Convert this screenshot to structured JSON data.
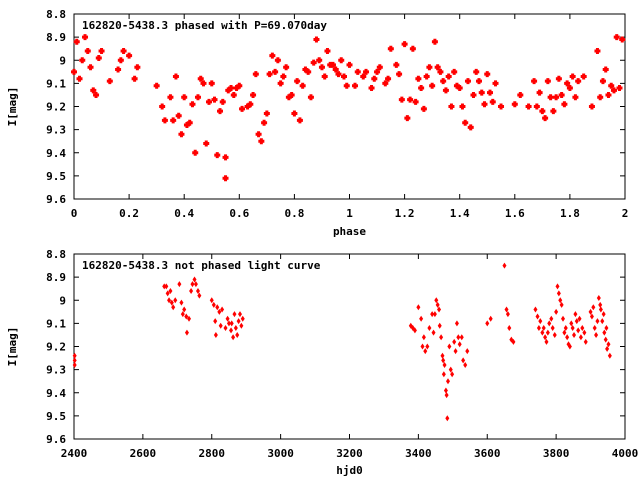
{
  "chart_data": [
    {
      "type": "scatter",
      "title": "162820-5438.3 phased with P=69.070day",
      "xlabel": "phase",
      "ylabel": "I[mag]",
      "xlim": [
        0,
        2
      ],
      "ylim": [
        8.8,
        9.6
      ],
      "y_inverted": true,
      "x_ticks": [
        "0",
        "0.2",
        "0.4",
        "0.6",
        "0.8",
        "1",
        "1.2",
        "1.4",
        "1.6",
        "1.8",
        "2"
      ],
      "y_ticks": [
        "8.8",
        "8.9",
        "9",
        "9.1",
        "9.2",
        "9.3",
        "9.4",
        "9.5",
        "9.6"
      ],
      "marker_color": "#ff0000",
      "grid": false,
      "points": [
        [
          0.0,
          9.05
        ],
        [
          0.01,
          8.92
        ],
        [
          0.02,
          9.08
        ],
        [
          0.03,
          9.0
        ],
        [
          0.04,
          8.9
        ],
        [
          0.05,
          8.96
        ],
        [
          0.06,
          9.03
        ],
        [
          0.07,
          9.13
        ],
        [
          0.08,
          9.15
        ],
        [
          0.09,
          8.99
        ],
        [
          0.1,
          8.96
        ],
        [
          0.13,
          9.09
        ],
        [
          0.16,
          9.04
        ],
        [
          0.17,
          9.0
        ],
        [
          0.18,
          8.96
        ],
        [
          0.2,
          8.98
        ],
        [
          0.22,
          9.08
        ],
        [
          0.23,
          9.03
        ],
        [
          0.3,
          9.11
        ],
        [
          0.32,
          9.2
        ],
        [
          0.33,
          9.26
        ],
        [
          0.35,
          9.16
        ],
        [
          0.36,
          9.26
        ],
        [
          0.37,
          9.07
        ],
        [
          0.38,
          9.24
        ],
        [
          0.39,
          9.32
        ],
        [
          0.4,
          9.16
        ],
        [
          0.41,
          9.28
        ],
        [
          0.42,
          9.27
        ],
        [
          0.43,
          9.19
        ],
        [
          0.44,
          9.4
        ],
        [
          0.45,
          9.16
        ],
        [
          0.46,
          9.08
        ],
        [
          0.47,
          9.1
        ],
        [
          0.48,
          9.36
        ],
        [
          0.49,
          9.18
        ],
        [
          0.5,
          9.1
        ],
        [
          0.51,
          9.17
        ],
        [
          0.52,
          9.41
        ],
        [
          0.53,
          9.22
        ],
        [
          0.54,
          9.18
        ],
        [
          0.55,
          9.51
        ],
        [
          0.55,
          9.42
        ],
        [
          0.56,
          9.13
        ],
        [
          0.57,
          9.12
        ],
        [
          0.58,
          9.15
        ],
        [
          0.59,
          9.12
        ],
        [
          0.6,
          9.11
        ],
        [
          0.61,
          9.21
        ],
        [
          0.63,
          9.2
        ],
        [
          0.64,
          9.19
        ],
        [
          0.65,
          9.15
        ],
        [
          0.66,
          9.06
        ],
        [
          0.67,
          9.32
        ],
        [
          0.68,
          9.35
        ],
        [
          0.69,
          9.27
        ],
        [
          0.7,
          9.23
        ],
        [
          0.71,
          9.06
        ],
        [
          0.72,
          8.98
        ],
        [
          0.73,
          9.05
        ],
        [
          0.74,
          9.0
        ],
        [
          0.75,
          9.1
        ],
        [
          0.76,
          9.07
        ],
        [
          0.77,
          9.03
        ],
        [
          0.78,
          9.16
        ],
        [
          0.79,
          9.15
        ],
        [
          0.8,
          9.23
        ],
        [
          0.81,
          9.09
        ],
        [
          0.82,
          9.26
        ],
        [
          0.83,
          9.11
        ],
        [
          0.84,
          9.04
        ],
        [
          0.85,
          9.05
        ],
        [
          0.86,
          9.16
        ],
        [
          0.87,
          9.01
        ],
        [
          0.88,
          8.91
        ],
        [
          0.89,
          9.0
        ],
        [
          0.9,
          9.03
        ],
        [
          0.91,
          9.07
        ],
        [
          0.92,
          8.96
        ],
        [
          0.93,
          9.02
        ],
        [
          0.94,
          9.02
        ],
        [
          0.95,
          9.04
        ],
        [
          0.96,
          9.06
        ],
        [
          0.97,
          9.0
        ],
        [
          0.98,
          9.07
        ],
        [
          0.99,
          9.11
        ],
        [
          1.0,
          9.02
        ],
        [
          1.02,
          9.11
        ],
        [
          1.03,
          9.05
        ],
        [
          1.05,
          9.07
        ],
        [
          1.06,
          9.05
        ],
        [
          1.08,
          9.12
        ],
        [
          1.09,
          9.08
        ],
        [
          1.1,
          9.05
        ],
        [
          1.11,
          9.03
        ],
        [
          1.13,
          9.1
        ],
        [
          1.14,
          9.08
        ],
        [
          1.15,
          8.95
        ],
        [
          1.17,
          9.02
        ],
        [
          1.18,
          9.06
        ],
        [
          1.19,
          9.17
        ],
        [
          1.2,
          8.93
        ],
        [
          1.21,
          9.25
        ],
        [
          1.22,
          9.17
        ],
        [
          1.23,
          8.95
        ],
        [
          1.24,
          9.18
        ],
        [
          1.25,
          9.08
        ],
        [
          1.26,
          9.12
        ],
        [
          1.27,
          9.21
        ],
        [
          1.28,
          9.07
        ],
        [
          1.29,
          9.03
        ],
        [
          1.3,
          9.11
        ],
        [
          1.31,
          8.92
        ],
        [
          1.32,
          9.03
        ],
        [
          1.33,
          9.05
        ],
        [
          1.34,
          9.09
        ],
        [
          1.35,
          9.13
        ],
        [
          1.36,
          9.07
        ],
        [
          1.37,
          9.2
        ],
        [
          1.38,
          9.05
        ],
        [
          1.39,
          9.11
        ],
        [
          1.4,
          9.12
        ],
        [
          1.41,
          9.2
        ],
        [
          1.42,
          9.27
        ],
        [
          1.43,
          9.09
        ],
        [
          1.44,
          9.29
        ],
        [
          1.45,
          9.15
        ],
        [
          1.46,
          9.05
        ],
        [
          1.47,
          9.09
        ],
        [
          1.48,
          9.14
        ],
        [
          1.49,
          9.19
        ],
        [
          1.5,
          9.06
        ],
        [
          1.51,
          9.14
        ],
        [
          1.52,
          9.18
        ],
        [
          1.53,
          9.1
        ],
        [
          1.55,
          9.2
        ],
        [
          1.6,
          9.19
        ],
        [
          1.62,
          9.15
        ],
        [
          1.65,
          9.2
        ],
        [
          1.67,
          9.09
        ],
        [
          1.68,
          9.2
        ],
        [
          1.69,
          9.14
        ],
        [
          1.7,
          9.22
        ],
        [
          1.71,
          9.25
        ],
        [
          1.72,
          9.09
        ],
        [
          1.73,
          9.16
        ],
        [
          1.74,
          9.22
        ],
        [
          1.75,
          9.16
        ],
        [
          1.76,
          9.08
        ],
        [
          1.77,
          9.15
        ],
        [
          1.78,
          9.19
        ],
        [
          1.79,
          9.1
        ],
        [
          1.8,
          9.12
        ],
        [
          1.81,
          9.07
        ],
        [
          1.82,
          9.16
        ],
        [
          1.83,
          9.09
        ],
        [
          1.85,
          9.07
        ],
        [
          1.88,
          9.2
        ],
        [
          1.9,
          8.96
        ],
        [
          1.91,
          9.16
        ],
        [
          1.92,
          9.09
        ],
        [
          1.93,
          9.04
        ],
        [
          1.94,
          9.15
        ],
        [
          1.95,
          9.11
        ],
        [
          1.96,
          9.13
        ],
        [
          1.97,
          8.9
        ],
        [
          1.98,
          9.12
        ],
        [
          1.99,
          8.91
        ]
      ]
    },
    {
      "type": "scatter",
      "title": "162820-5438.3 not phased light curve",
      "xlabel": "hjd0",
      "ylabel": "I[mag]",
      "xlim": [
        2400,
        4000
      ],
      "ylim": [
        8.8,
        9.6
      ],
      "y_inverted": true,
      "x_ticks": [
        "2400",
        "2600",
        "2800",
        "3000",
        "3200",
        "3400",
        "3600",
        "3800",
        "4000"
      ],
      "y_ticks": [
        "8.8",
        "8.9",
        "9",
        "9.1",
        "9.2",
        "9.3",
        "9.4",
        "9.5",
        "9.6"
      ],
      "marker_color": "#ff0000",
      "grid": false,
      "points": [
        [
          2402,
          9.24
        ],
        [
          2402,
          9.26
        ],
        [
          2402,
          9.28
        ],
        [
          2662,
          8.94
        ],
        [
          2668,
          8.94
        ],
        [
          2672,
          8.97
        ],
        [
          2676,
          9.0
        ],
        [
          2680,
          8.96
        ],
        [
          2684,
          9.01
        ],
        [
          2688,
          9.03
        ],
        [
          2694,
          9.0
        ],
        [
          2706,
          8.93
        ],
        [
          2712,
          9.01
        ],
        [
          2716,
          9.06
        ],
        [
          2720,
          9.04
        ],
        [
          2726,
          9.07
        ],
        [
          2728,
          9.14
        ],
        [
          2734,
          9.08
        ],
        [
          2740,
          8.96
        ],
        [
          2744,
          8.93
        ],
        [
          2750,
          8.91
        ],
        [
          2754,
          8.93
        ],
        [
          2760,
          8.96
        ],
        [
          2764,
          8.98
        ],
        [
          2800,
          9.0
        ],
        [
          2806,
          9.02
        ],
        [
          2810,
          9.09
        ],
        [
          2812,
          9.15
        ],
        [
          2816,
          9.03
        ],
        [
          2822,
          9.05
        ],
        [
          2826,
          9.11
        ],
        [
          2830,
          9.04
        ],
        [
          2840,
          9.12
        ],
        [
          2846,
          9.08
        ],
        [
          2850,
          9.1
        ],
        [
          2856,
          9.13
        ],
        [
          2858,
          9.1
        ],
        [
          2862,
          9.16
        ],
        [
          2866,
          9.06
        ],
        [
          2870,
          9.12
        ],
        [
          2874,
          9.15
        ],
        [
          2878,
          9.09
        ],
        [
          2882,
          9.06
        ],
        [
          2886,
          9.11
        ],
        [
          2890,
          9.08
        ],
        [
          3378,
          9.11
        ],
        [
          3384,
          9.12
        ],
        [
          3390,
          9.13
        ],
        [
          3400,
          9.03
        ],
        [
          3408,
          9.08
        ],
        [
          3412,
          9.2
        ],
        [
          3416,
          9.16
        ],
        [
          3420,
          9.22
        ],
        [
          3426,
          9.2
        ],
        [
          3432,
          9.12
        ],
        [
          3440,
          9.06
        ],
        [
          3444,
          9.14
        ],
        [
          3448,
          9.06
        ],
        [
          3452,
          9.0
        ],
        [
          3456,
          9.02
        ],
        [
          3460,
          9.04
        ],
        [
          3462,
          9.11
        ],
        [
          3466,
          9.16
        ],
        [
          3470,
          9.24
        ],
        [
          3472,
          9.26
        ],
        [
          3474,
          9.32
        ],
        [
          3476,
          9.28
        ],
        [
          3480,
          9.39
        ],
        [
          3482,
          9.41
        ],
        [
          3484,
          9.51
        ],
        [
          3486,
          9.35
        ],
        [
          3490,
          9.2
        ],
        [
          3494,
          9.3
        ],
        [
          3498,
          9.32
        ],
        [
          3504,
          9.18
        ],
        [
          3508,
          9.22
        ],
        [
          3512,
          9.1
        ],
        [
          3516,
          9.16
        ],
        [
          3520,
          9.19
        ],
        [
          3526,
          9.16
        ],
        [
          3530,
          9.26
        ],
        [
          3536,
          9.28
        ],
        [
          3542,
          9.22
        ],
        [
          3600,
          9.1
        ],
        [
          3610,
          9.08
        ],
        [
          3650,
          8.85
        ],
        [
          3656,
          9.04
        ],
        [
          3660,
          9.06
        ],
        [
          3664,
          9.12
        ],
        [
          3670,
          9.17
        ],
        [
          3676,
          9.18
        ],
        [
          3740,
          9.04
        ],
        [
          3746,
          9.07
        ],
        [
          3750,
          9.12
        ],
        [
          3754,
          9.09
        ],
        [
          3760,
          9.14
        ],
        [
          3764,
          9.12
        ],
        [
          3768,
          9.16
        ],
        [
          3772,
          9.18
        ],
        [
          3776,
          9.14
        ],
        [
          3780,
          9.1
        ],
        [
          3786,
          9.08
        ],
        [
          3790,
          9.12
        ],
        [
          3796,
          9.15
        ],
        [
          3800,
          9.05
        ],
        [
          3804,
          8.94
        ],
        [
          3808,
          8.97
        ],
        [
          3812,
          9.0
        ],
        [
          3816,
          9.02
        ],
        [
          3820,
          9.08
        ],
        [
          3824,
          9.14
        ],
        [
          3828,
          9.12
        ],
        [
          3832,
          9.16
        ],
        [
          3836,
          9.19
        ],
        [
          3840,
          9.2
        ],
        [
          3844,
          9.1
        ],
        [
          3848,
          9.12
        ],
        [
          3852,
          9.15
        ],
        [
          3856,
          9.06
        ],
        [
          3860,
          9.09
        ],
        [
          3864,
          9.13
        ],
        [
          3868,
          9.08
        ],
        [
          3872,
          9.16
        ],
        [
          3876,
          9.12
        ],
        [
          3882,
          9.14
        ],
        [
          3886,
          9.18
        ],
        [
          3900,
          9.05
        ],
        [
          3904,
          9.07
        ],
        [
          3908,
          9.03
        ],
        [
          3912,
          9.12
        ],
        [
          3916,
          9.15
        ],
        [
          3920,
          9.09
        ],
        [
          3924,
          8.99
        ],
        [
          3928,
          9.02
        ],
        [
          3930,
          9.04
        ],
        [
          3934,
          9.09
        ],
        [
          3938,
          9.06
        ],
        [
          3940,
          9.14
        ],
        [
          3944,
          9.17
        ],
        [
          3946,
          9.12
        ],
        [
          3948,
          9.21
        ],
        [
          3952,
          9.19
        ],
        [
          3956,
          9.24
        ]
      ]
    }
  ]
}
